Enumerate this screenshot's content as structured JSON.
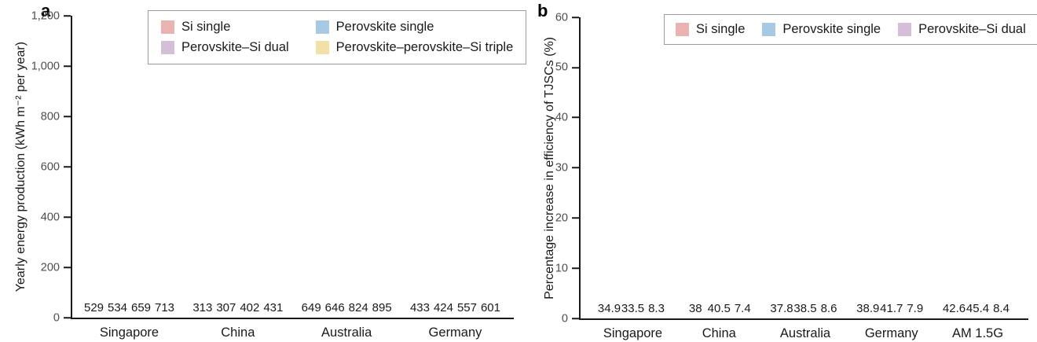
{
  "figure": {
    "background": "#ffffff"
  },
  "colors": {
    "axis": "#1a1a1a",
    "tick_label": "#4d4d4d",
    "text": "#1a1a1a",
    "legend_border": "#9b9b9b",
    "si_single": "#eab2b0",
    "perovskite_single": "#a7c9e3",
    "perovskite_si_dual": "#d5bed8",
    "perovskite_perovskite_si_triple": "#f2e0a7"
  },
  "chart_data": [
    {
      "type": "bar",
      "panel_label": "a",
      "title": "",
      "xlabel": "",
      "ylabel": "Yearly energy production (kWh m⁻² per year)",
      "categories": [
        "Singapore",
        "China",
        "Australia",
        "Germany"
      ],
      "series": [
        {
          "name": "Si single",
          "color": "#eab2b0",
          "values": [
            529,
            313,
            649,
            433
          ],
          "value_labels": [
            "529",
            "313",
            "649",
            "433"
          ]
        },
        {
          "name": "Perovskite single",
          "color": "#a7c9e3",
          "values": [
            534,
            307,
            646,
            424
          ],
          "value_labels": [
            "534",
            "307",
            "646",
            "424"
          ]
        },
        {
          "name": "Perovskite–Si dual",
          "color": "#d5bed8",
          "values": [
            659,
            402,
            824,
            557
          ],
          "value_labels": [
            "659",
            "402",
            "824",
            "557"
          ]
        },
        {
          "name": "Perovskite–perovskite–Si triple",
          "color": "#f2e0a7",
          "values": [
            713,
            431,
            895,
            601
          ],
          "value_labels": [
            "713",
            "431",
            "895",
            "601"
          ]
        }
      ],
      "ylim": [
        0,
        1200
      ],
      "yticks": [
        0,
        200,
        400,
        600,
        800,
        1000,
        1200
      ],
      "ytick_labels": [
        "0",
        "200",
        "400",
        "600",
        "800",
        "1,000",
        "1,200"
      ],
      "grid": false,
      "legend_position": "top-inside",
      "legend_columns": 2
    },
    {
      "type": "bar",
      "panel_label": "b",
      "title": "",
      "xlabel": "",
      "ylabel": "Percentage increase in efficiency of TJSCs (%)",
      "categories": [
        "Singapore",
        "China",
        "Australia",
        "Germany",
        "AM 1.5G"
      ],
      "series": [
        {
          "name": "Si single",
          "color": "#eab2b0",
          "values": [
            34.9,
            38,
            37.8,
            38.9,
            42.6
          ],
          "value_labels": [
            "34.9",
            "38",
            "37.8",
            "38.9",
            "42.6"
          ]
        },
        {
          "name": "Perovskite single",
          "color": "#a7c9e3",
          "values": [
            33.5,
            40.5,
            38.5,
            41.7,
            45.4
          ],
          "value_labels": [
            "33.5",
            "40.5",
            "38.5",
            "41.7",
            "45.4"
          ]
        },
        {
          "name": "Perovskite–Si dual",
          "color": "#d5bed8",
          "values": [
            8.3,
            7.4,
            8.6,
            7.9,
            8.4
          ],
          "value_labels": [
            "8.3",
            "7.4",
            "8.6",
            "7.9",
            "8.4"
          ]
        }
      ],
      "ylim": [
        0,
        60
      ],
      "yticks": [
        0,
        10,
        20,
        30,
        40,
        50,
        60
      ],
      "ytick_labels": [
        "0",
        "10",
        "20",
        "30",
        "40",
        "50",
        "60"
      ],
      "grid": false,
      "legend_position": "top-inside",
      "legend_columns": 3
    }
  ]
}
